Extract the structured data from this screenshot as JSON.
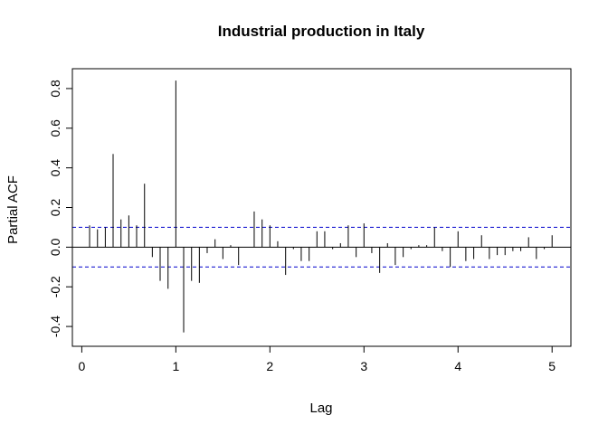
{
  "chart_data": {
    "type": "bar",
    "title": "Industrial production in Italy",
    "xlabel": "Lag",
    "ylabel": "Partial ACF",
    "xlim": [
      -0.1,
      5.2
    ],
    "ylim": [
      -0.5,
      0.9
    ],
    "x_ticks": [
      "0",
      "1",
      "2",
      "3",
      "4",
      "5"
    ],
    "y_ticks": [
      "-0.4",
      "-0.2",
      "0.0",
      "0.2",
      "0.4",
      "0.6",
      "0.8"
    ],
    "confidence_limit": 0.1,
    "colors": {
      "bars": "#000000",
      "confidence_lines": "#0000cc",
      "zero_line": "#000000"
    },
    "lags": [
      0.083,
      0.167,
      0.25,
      0.333,
      0.417,
      0.5,
      0.583,
      0.667,
      0.75,
      0.833,
      0.917,
      1.0,
      1.083,
      1.167,
      1.25,
      1.333,
      1.417,
      1.5,
      1.583,
      1.667,
      1.75,
      1.833,
      1.917,
      2.0,
      2.083,
      2.167,
      2.25,
      2.333,
      2.417,
      2.5,
      2.583,
      2.667,
      2.75,
      2.833,
      2.917,
      3.0,
      3.083,
      3.167,
      3.25,
      3.333,
      3.417,
      3.5,
      3.583,
      3.667,
      3.75,
      3.833,
      3.917,
      4.0,
      4.083,
      4.167,
      4.25,
      4.333,
      4.417,
      4.5,
      4.583,
      4.667,
      4.75,
      4.833,
      4.917,
      5.0
    ],
    "values": [
      0.11,
      0.09,
      0.1,
      0.47,
      0.14,
      0.16,
      0.11,
      0.32,
      -0.05,
      -0.17,
      -0.21,
      0.84,
      -0.43,
      -0.17,
      -0.18,
      -0.03,
      0.04,
      -0.06,
      0.01,
      -0.09,
      0.0,
      0.18,
      0.14,
      0.11,
      0.03,
      -0.14,
      -0.01,
      -0.07,
      -0.07,
      0.08,
      0.08,
      -0.01,
      0.02,
      0.11,
      -0.05,
      0.12,
      -0.03,
      -0.13,
      0.02,
      -0.09,
      -0.05,
      -0.01,
      0.01,
      0.01,
      0.1,
      -0.02,
      -0.1,
      0.08,
      -0.07,
      -0.06,
      0.06,
      -0.06,
      -0.04,
      -0.04,
      -0.02,
      -0.02,
      0.05,
      -0.06,
      -0.01,
      0.06
    ]
  }
}
